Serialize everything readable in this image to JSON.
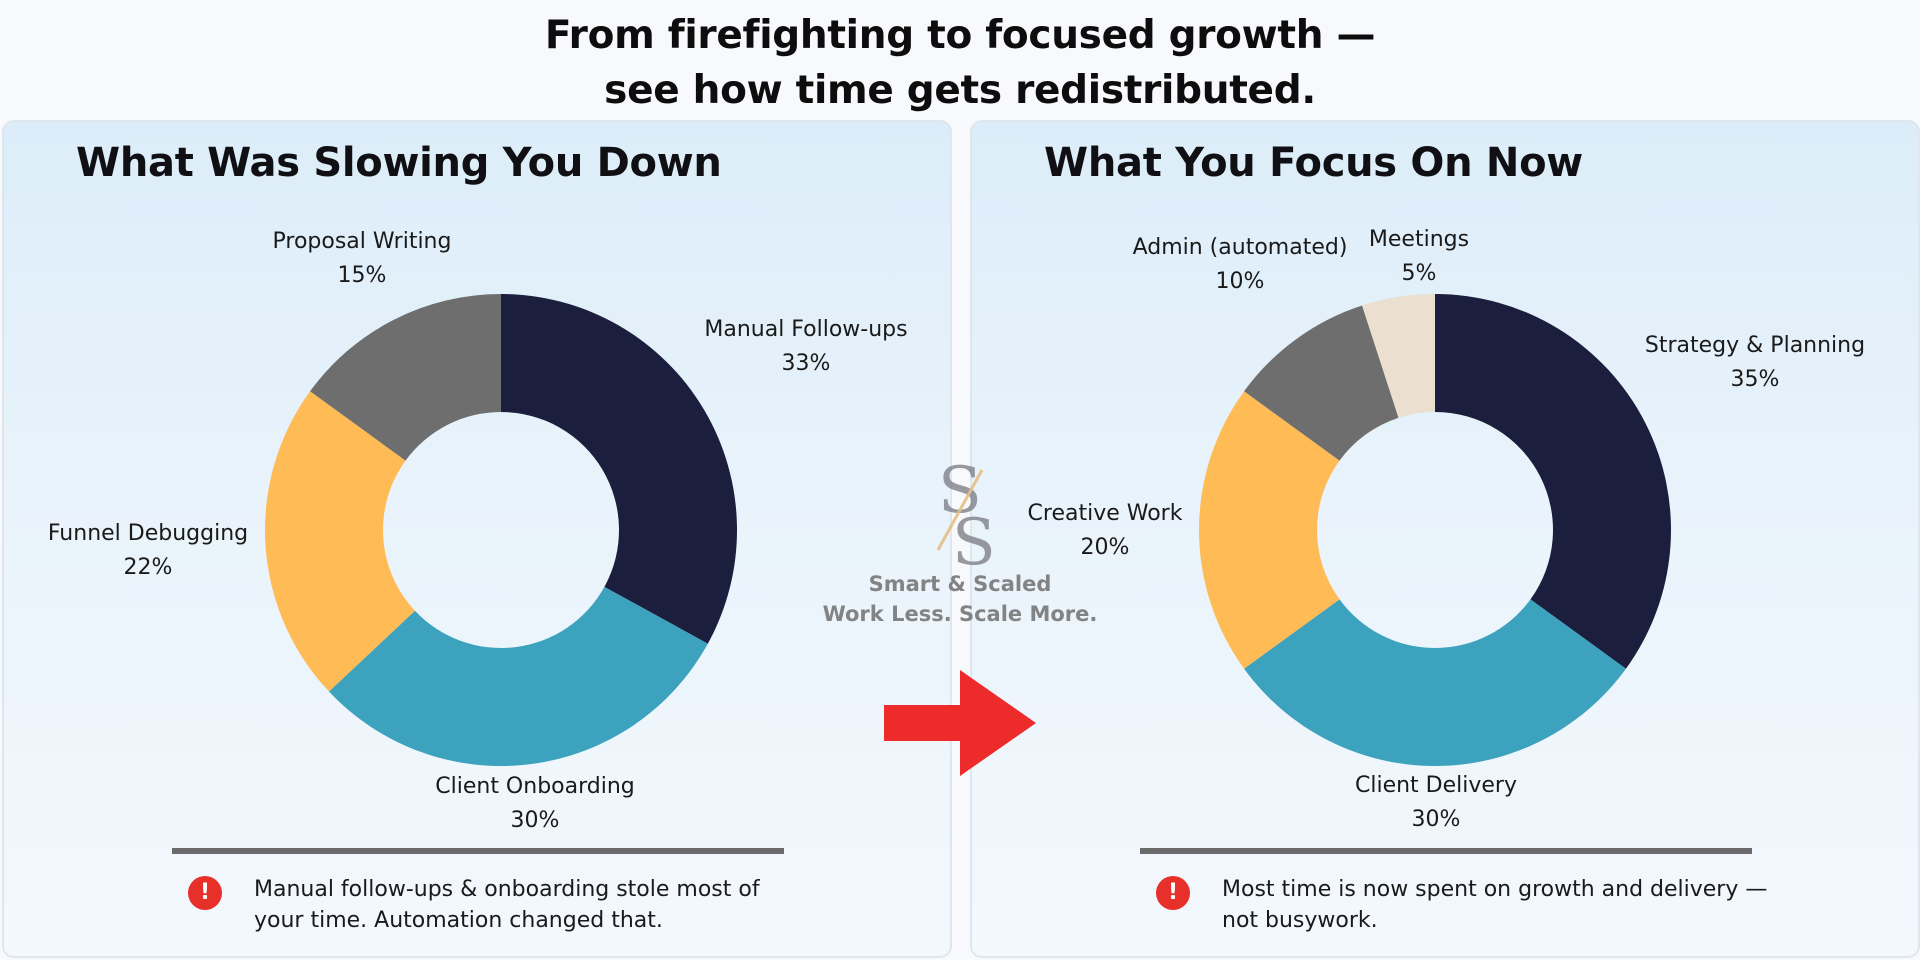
{
  "headline": {
    "line1": "From firefighting to focused growth —",
    "line2": "see how time gets redistributed."
  },
  "watermark": {
    "brand": "Smart & Scaled",
    "tagline": "Work Less. Scale More."
  },
  "colors": {
    "navy": "#1b1e3c",
    "teal": "#3ca2bd",
    "amber": "#ffbb55",
    "gray": "#6e6e6e",
    "beige": "#ebdfcf",
    "alert_red": "#e8302a",
    "arrow_red": "#ee2b2b"
  },
  "panels": {
    "left": {
      "title": "What Was Slowing You Down",
      "note": "Manual follow-ups & onboarding stole most of your time. Automation changed that."
    },
    "right": {
      "title": "What You Focus On Now",
      "note": "Most time is now spent on growth and delivery — not busywork."
    }
  },
  "chart_data": [
    {
      "type": "pie",
      "donut": true,
      "title": "What Was Slowing You Down",
      "start": "12 o'clock, clockwise",
      "slices": [
        {
          "label": "Manual Follow-ups",
          "value": 33,
          "display": "33%",
          "color": "#1b1e3c"
        },
        {
          "label": "Client Onboarding",
          "value": 30,
          "display": "30%",
          "color": "#3ca2bd"
        },
        {
          "label": "Funnel Debugging",
          "value": 22,
          "display": "22%",
          "color": "#ffbb55"
        },
        {
          "label": "Proposal Writing",
          "value": 15,
          "display": "15%",
          "color": "#6e6e6e"
        }
      ]
    },
    {
      "type": "pie",
      "donut": true,
      "title": "What You Focus On Now",
      "start": "12 o'clock, clockwise",
      "slices": [
        {
          "label": "Strategy & Planning",
          "value": 35,
          "display": "35%",
          "color": "#1b1e3c"
        },
        {
          "label": "Client Delivery",
          "value": 30,
          "display": "30%",
          "color": "#3ca2bd"
        },
        {
          "label": "Creative Work",
          "value": 20,
          "display": "20%",
          "color": "#ffbb55"
        },
        {
          "label": "Admin (automated)",
          "value": 10,
          "display": "10%",
          "color": "#6e6e6e"
        },
        {
          "label": "Meetings",
          "value": 5,
          "display": "5%",
          "color": "#ebdfcf"
        }
      ]
    }
  ]
}
